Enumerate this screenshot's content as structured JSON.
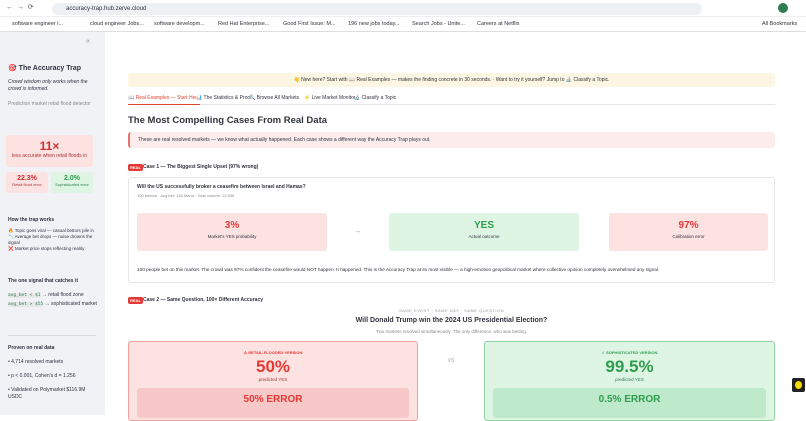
{
  "browser": {
    "url": "accuracy-trap.hub.zerve.cloud",
    "bookmarks": [
      "software engineer l...",
      "cloud engineer Jobs...",
      "software developm...",
      "Red Hat Enterprise...",
      "Good First Issue: M...",
      "196 new jobs today...",
      "Search Jobs - Unite...",
      "Careers at Netflix"
    ],
    "all_bookmarks": "All Bookmarks"
  },
  "sidebar": {
    "title": "The Accuracy Trap",
    "tagline": "Crowd wisdom only works when the crowd is informed.",
    "caption": "Prediction market retail flood detector",
    "hero": {
      "value": "11×",
      "label": "less accurate when retail floods in"
    },
    "mini": [
      {
        "value": "22.3%",
        "label": "Retail flood error"
      },
      {
        "value": "2.0%",
        "label": "Sophisticated error"
      }
    ],
    "how_title": "How the trap works",
    "how": [
      "Topic goes viral — casual bettors pile in",
      "Average bet drops — noise drowns the signal",
      "Market price stops reflecting reality"
    ],
    "signal_title": "The one signal that catches it",
    "signals": [
      {
        "code": "avg_bet < $1",
        "text": "→ retail flood zone"
      },
      {
        "code": "avg_bet > $55",
        "text": "→ sophisticated market"
      }
    ],
    "proven_title": "Proven on real data",
    "proven": [
      "4,714 resolved markets",
      "p < 0.001, Cohen's d = 1.256",
      "Validated on Polymarket $116.9M USDC"
    ]
  },
  "main": {
    "banner": "👋 New here? Start with 📖 Real Examples — makes the finding concrete in 30 seconds. · Want to try it yourself? Jump to 🔬 Classify a Topic.",
    "tabs": [
      "📖 Real Examples — Start Here",
      "📊 The Statistics & Proof",
      "🔍 Browse All Markets",
      "⚡ Live Market Monitor",
      "🔬 Classify a Topic"
    ],
    "heading": "The Most Compelling Cases From Real Data",
    "info": "These are real resolved markets — we know what actually happened. Each case shows a different way the Accuracy Trap plays out.",
    "badge": "REAL",
    "case1": {
      "title": "Case 1 — The Biggest Single Upset (97% wrong)",
      "question": "Will the US successfully broker a ceasefire between Israel and Hamas?",
      "meta": "100 bettors · Avg bet: 135 Mana · Total volume: 13,536",
      "boxes": [
        {
          "value": "3%",
          "label": "Market's YES probability"
        },
        {
          "value": "YES",
          "label": "Actual outcome"
        },
        {
          "value": "97%",
          "label": "Calibration error"
        }
      ],
      "text": "100 people bet on this market. The crowd was 97% confident the ceasefire would NOT happen. It happened. This is the Accuracy Trap at its most visible — a high-emotion geopolitical market where collective opinion completely overwhelmed any signal."
    },
    "case2": {
      "title": "Case 2 — Same Question, 100× Different Accuracy",
      "kicker": "SAME EVENT · SAME DAY · SAME QUESTION",
      "question": "Will Donald Trump win the 2024 US Presidential Election?",
      "sub": "Two markets resolved simultaneously. The only difference: who was betting.",
      "vs": "VS",
      "left": {
        "tag": "⚠ RETAIL-FLOODED VERSION",
        "value": "50%",
        "label": "predicted YES",
        "error": "50% ERROR"
      },
      "right": {
        "tag": "✓ SOPHISTICATED VERSION",
        "value": "99.5%",
        "label": "predicted YES",
        "error": "0.5% ERROR"
      }
    }
  }
}
